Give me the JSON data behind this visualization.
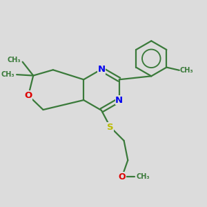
{
  "bg_color": "#dcdcdc",
  "bond_color": "#3a7a3a",
  "N_color": "#0000ee",
  "O_color": "#dd0000",
  "S_color": "#bbbb00",
  "line_width": 1.6,
  "font_size": 8.5,
  "figsize": [
    3.0,
    3.0
  ],
  "dpi": 100,
  "xlim": [
    0,
    10
  ],
  "ylim": [
    0,
    10
  ]
}
